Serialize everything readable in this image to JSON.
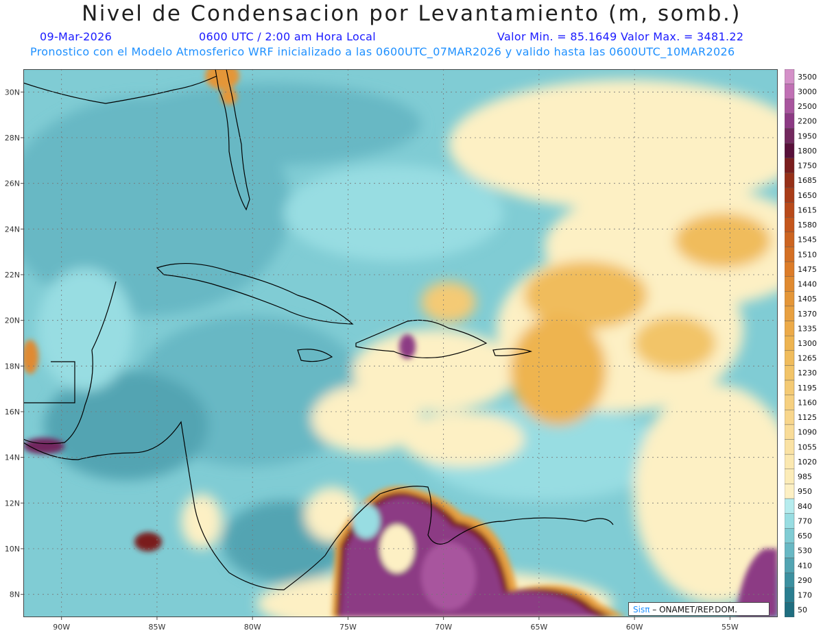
{
  "header": {
    "title": "Nivel de Condensacion por Levantamiento (m, somb.)",
    "date": "09-Mar-2026",
    "time": "0600 UTC / 2:00 am Hora Local",
    "min_max": "Valor Min. = 85.1649   Valor Max. = 3481.22",
    "description": "Pronostico con el Modelo Atmosferico WRF inicializado a las 0600UTC_07MAR2026 y valido hasta las  0600UTC_10MAR2026"
  },
  "map": {
    "lon_range": [
      -92.0,
      -52.5
    ],
    "lat_range": [
      7.0,
      31.0
    ],
    "lon_ticks": [
      {
        "value": -90,
        "label": "90W"
      },
      {
        "value": -85,
        "label": "85W"
      },
      {
        "value": -80,
        "label": "80W"
      },
      {
        "value": -75,
        "label": "75W"
      },
      {
        "value": -70,
        "label": "70W"
      },
      {
        "value": -65,
        "label": "65W"
      },
      {
        "value": -60,
        "label": "60W"
      },
      {
        "value": -55,
        "label": "55W"
      }
    ],
    "lat_ticks": [
      {
        "value": 8,
        "label": "8N"
      },
      {
        "value": 10,
        "label": "10N"
      },
      {
        "value": 12,
        "label": "12N"
      },
      {
        "value": 14,
        "label": "14N"
      },
      {
        "value": 16,
        "label": "16N"
      },
      {
        "value": 18,
        "label": "18N"
      },
      {
        "value": 20,
        "label": "20N"
      },
      {
        "value": 22,
        "label": "22N"
      },
      {
        "value": 24,
        "label": "24N"
      },
      {
        "value": 26,
        "label": "26N"
      },
      {
        "value": 28,
        "label": "28N"
      },
      {
        "value": 30,
        "label": "30N"
      }
    ],
    "gridlines": "dotted",
    "logo": {
      "sis": "Sisπ",
      "text": "– ONAMET/REP.DOM."
    }
  },
  "colorbar": {
    "labels": [
      "3500",
      "3000",
      "2500",
      "2200",
      "1950",
      "1800",
      "1750",
      "1685",
      "1650",
      "1615",
      "1580",
      "1545",
      "1510",
      "1475",
      "1440",
      "1405",
      "1370",
      "1335",
      "1300",
      "1265",
      "1230",
      "1195",
      "1160",
      "1125",
      "1090",
      "1055",
      "1020",
      "985",
      "950",
      "840",
      "770",
      "650",
      "530",
      "410",
      "290",
      "170",
      "50"
    ],
    "colors": [
      "#d490c8",
      "#c070b4",
      "#a8559e",
      "#8c3a84",
      "#72285e",
      "#58103a",
      "#7a1e1e",
      "#963018",
      "#a83c18",
      "#b84a1a",
      "#c4561c",
      "#cc6420",
      "#d47024",
      "#dc7c28",
      "#e08a30",
      "#e49638",
      "#e8a040",
      "#ecaa48",
      "#eeb450",
      "#f0bc5c",
      "#f2c468",
      "#f4ca74",
      "#f6d080",
      "#f8d68c",
      "#f9dc98",
      "#fae2a4",
      "#fbe8b0",
      "#fcecb8",
      "#fdf0c4",
      "#b6ecee",
      "#98dde2",
      "#80ccd4",
      "#68b8c4",
      "#52a4b2",
      "#3c90a0",
      "#2a7e90",
      "#1f6e80"
    ]
  }
}
